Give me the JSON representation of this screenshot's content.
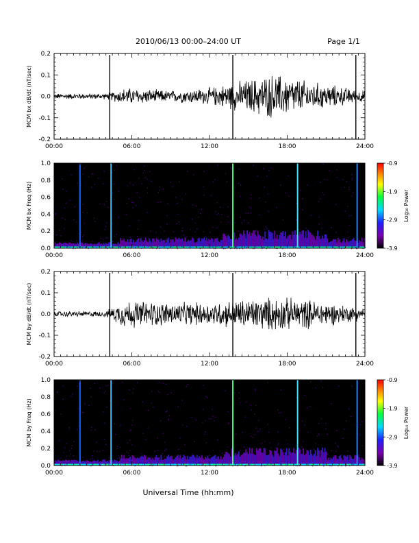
{
  "header": {
    "title": "2010/06/13  00:00–24:00 UT",
    "page": "Page 1/1"
  },
  "xaxis": {
    "ticks": [
      "00:00",
      "06:00",
      "12:00",
      "18:00",
      "24:00"
    ],
    "label": "Universal Time (hh:mm)"
  },
  "colorbar": {
    "ticks": [
      "-0.9",
      "-1.9",
      "-2.9",
      "-3.9"
    ],
    "label": "Log₁₀ Power",
    "colors": [
      "#000000",
      "#7a00b0",
      "#2020ff",
      "#00d8ff",
      "#00ff40",
      "#ffff00",
      "#ff8000",
      "#ff0000"
    ]
  },
  "chart_data": [
    {
      "type": "line",
      "panel": "bx-timeseries",
      "ylabel": "MCM bx dB/dt (nT/sec)",
      "yticks": [
        "0.2",
        "0.1",
        "0.0",
        "-0.1",
        "-0.2"
      ],
      "ylim": [
        -0.2,
        0.2
      ],
      "xlim_hours": [
        0,
        24
      ],
      "spike_hours": [
        4.3,
        13.8,
        23.3
      ],
      "activity_profile": [
        {
          "hour": 0,
          "amplitude": 0.01
        },
        {
          "hour": 4,
          "amplitude": 0.01
        },
        {
          "hour": 5.5,
          "amplitude": 0.03
        },
        {
          "hour": 9,
          "amplitude": 0.02
        },
        {
          "hour": 12,
          "amplitude": 0.03
        },
        {
          "hour": 14,
          "amplitude": 0.05
        },
        {
          "hour": 17,
          "amplitude": 0.08
        },
        {
          "hour": 20,
          "amplitude": 0.05
        },
        {
          "hour": 24,
          "amplitude": 0.02
        }
      ]
    },
    {
      "type": "heatmap",
      "panel": "bx-spectrogram",
      "ylabel": "MCM bx Freq (Hz)",
      "yticks": [
        "1.0",
        "0.8",
        "0.6",
        "0.4",
        "0.2",
        "0.0"
      ],
      "ylim": [
        0,
        1.0
      ],
      "xlim_hours": [
        0,
        24
      ],
      "clim": [
        -3.9,
        -0.9
      ],
      "lines": [
        {
          "hour": 2.0,
          "color": "#2060ff"
        },
        {
          "hour": 4.4,
          "color": "#40c0ff"
        },
        {
          "hour": 13.8,
          "color": "#40ff80"
        },
        {
          "hour": 18.8,
          "color": "#40e0ff"
        },
        {
          "hour": 23.4,
          "color": "#2080ff"
        }
      ]
    },
    {
      "type": "line",
      "panel": "by-timeseries",
      "ylabel": "MCM by dB/dt (nT/sec)",
      "yticks": [
        "0.2",
        "0.1",
        "0.0",
        "-0.1",
        "-0.2"
      ],
      "ylim": [
        -0.2,
        0.2
      ],
      "xlim_hours": [
        0,
        24
      ],
      "spike_hours": [
        4.3,
        13.8,
        23.3
      ],
      "activity_profile": [
        {
          "hour": 0,
          "amplitude": 0.01
        },
        {
          "hour": 4,
          "amplitude": 0.01
        },
        {
          "hour": 5.5,
          "amplitude": 0.05
        },
        {
          "hour": 9,
          "amplitude": 0.04
        },
        {
          "hour": 12,
          "amplitude": 0.04
        },
        {
          "hour": 14,
          "amplitude": 0.05
        },
        {
          "hour": 17,
          "amplitude": 0.06
        },
        {
          "hour": 20,
          "amplitude": 0.05
        },
        {
          "hour": 24,
          "amplitude": 0.02
        }
      ]
    },
    {
      "type": "heatmap",
      "panel": "by-spectrogram",
      "ylabel": "MCM by Freq (Hz)",
      "yticks": [
        "1.0",
        "0.8",
        "0.6",
        "0.4",
        "0.2",
        "0.0"
      ],
      "ylim": [
        0,
        1.0
      ],
      "xlim_hours": [
        0,
        24
      ],
      "clim": [
        -3.9,
        -0.9
      ],
      "lines": [
        {
          "hour": 2.0,
          "color": "#2060ff"
        },
        {
          "hour": 4.4,
          "color": "#40c0ff"
        },
        {
          "hour": 13.8,
          "color": "#40ff80"
        },
        {
          "hour": 18.8,
          "color": "#40e0ff"
        },
        {
          "hour": 23.4,
          "color": "#2080ff"
        }
      ]
    }
  ]
}
